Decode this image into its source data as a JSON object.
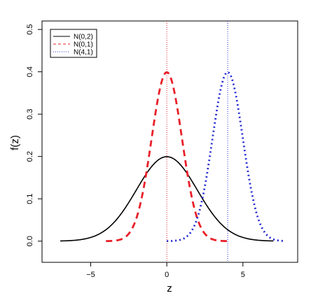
{
  "chart_data": {
    "type": "line",
    "title": "",
    "xlabel": "z",
    "ylabel": "f(z)",
    "xlim": [
      -8.2,
      8.6
    ],
    "ylim": [
      -0.05,
      0.52
    ],
    "x_ticks": [
      -5,
      0,
      5
    ],
    "x_tick_labels": [
      "−5",
      "0",
      "5"
    ],
    "y_ticks": [
      0.0,
      0.1,
      0.2,
      0.3,
      0.4,
      0.5
    ],
    "y_tick_labels": [
      "0.0",
      "0.1",
      "0.2",
      "0.3",
      "0.4",
      "0.5"
    ],
    "grid": false,
    "legend_position": "top-left",
    "series": [
      {
        "name": "N(0,2)",
        "mean": 0,
        "sd": 2,
        "x_range": [
          -7,
          7
        ],
        "color": "#000000",
        "style": "solid"
      },
      {
        "name": "N(0,1)",
        "mean": 0,
        "sd": 1,
        "x_range": [
          -4,
          4
        ],
        "color": "#e8202a",
        "style": "dashed"
      },
      {
        "name": "N(4,1)",
        "mean": 4,
        "sd": 1,
        "x_range": [
          0,
          7.8
        ],
        "color": "#2228d0",
        "style": "dotted"
      }
    ],
    "reference_lines": [
      {
        "x": 0,
        "color": "#e8202a",
        "style": "dotted"
      },
      {
        "x": 4,
        "color": "#2228d0",
        "style": "dotted"
      }
    ]
  }
}
